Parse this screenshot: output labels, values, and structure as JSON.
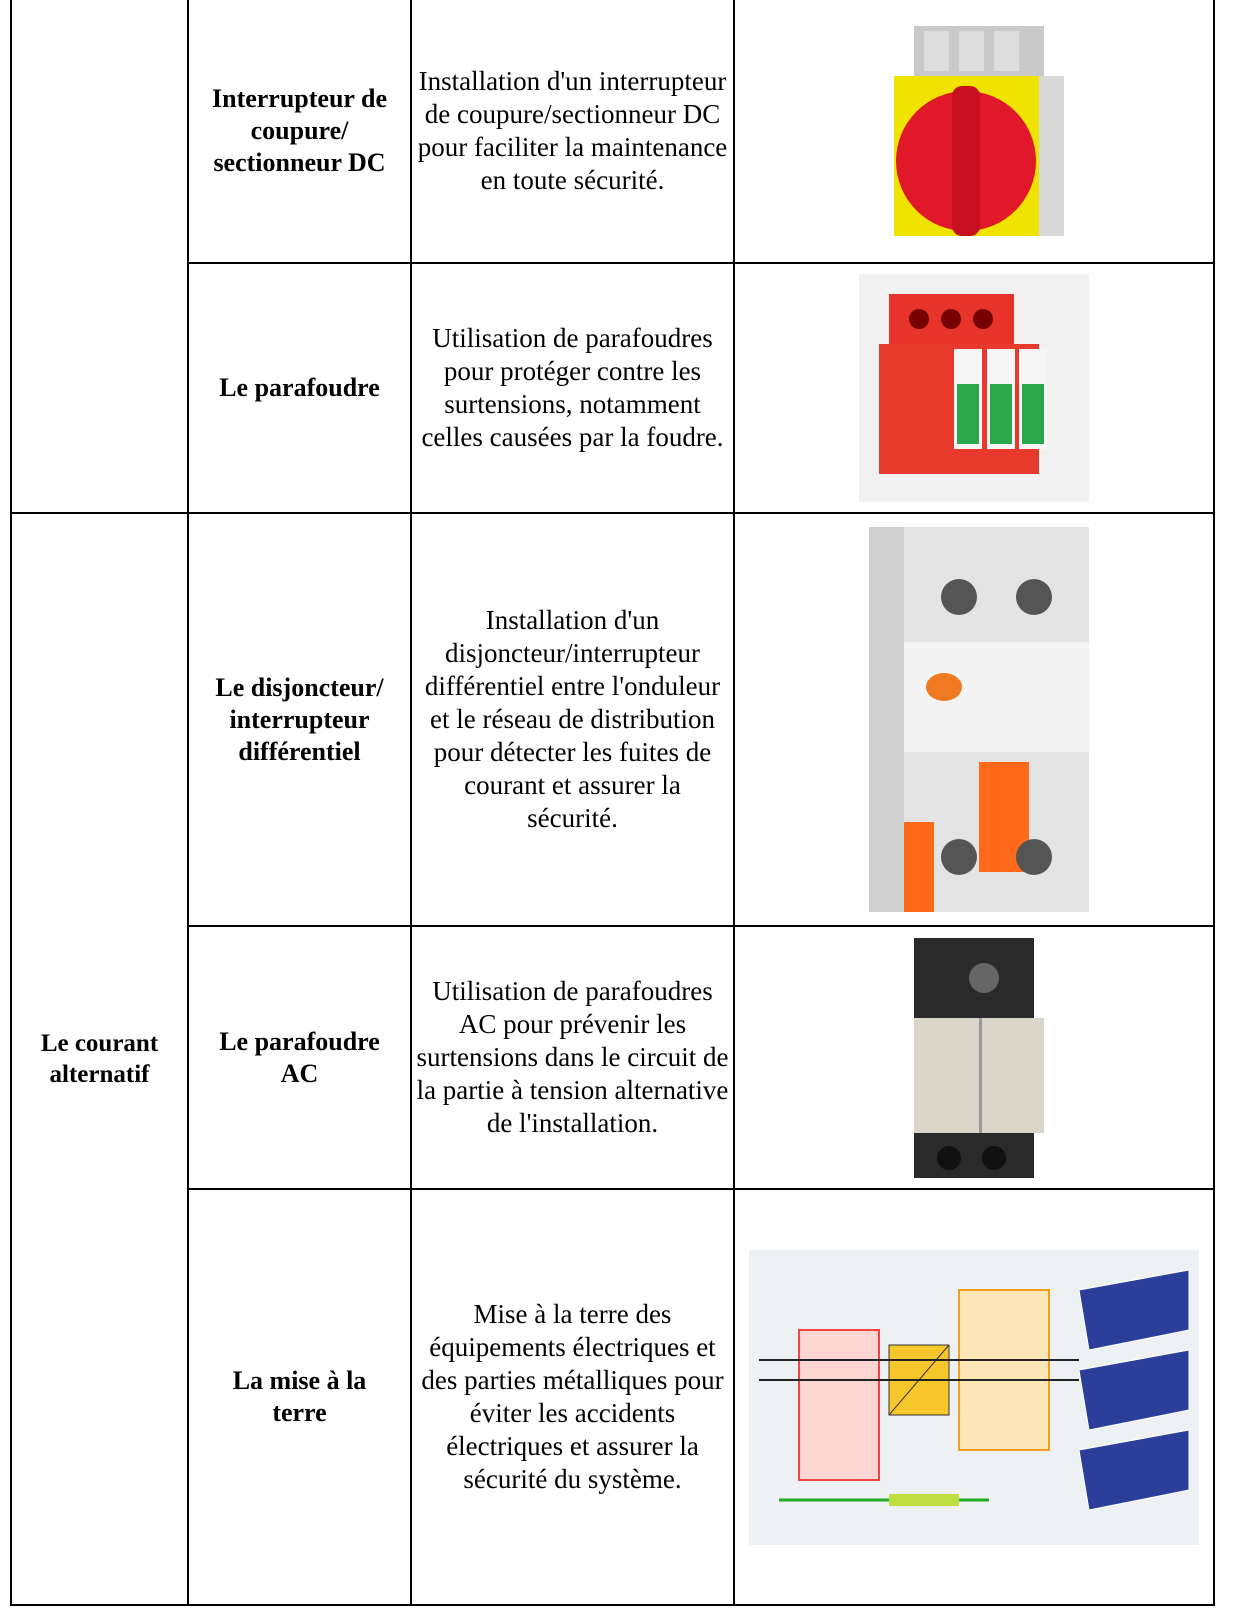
{
  "table": {
    "group": "Le courant alternatif",
    "rows": [
      {
        "label": "Interrupteur de coupure/ sectionneur DC",
        "description": "Installation d'un interrupteur de coupure/sectionneur DC pour faciliter la maintenance en toute sécurité."
      },
      {
        "label": "Le parafoudre",
        "description": "Utilisation de parafoudres pour protéger contre les surtensions, notamment celles causées par la foudre."
      },
      {
        "label": "Le disjoncteur/ interrupteur différentiel",
        "description": "Installation d'un disjoncteur/interrupteur différentiel entre l'onduleur et le réseau de distribution pour détecter les fuites de courant et assurer la sécurité."
      },
      {
        "label": "Le parafoudre AC",
        "description": "Utilisation de parafoudres AC pour prévenir les surtensions dans le circuit de la partie à tension alternative de l'installation."
      },
      {
        "label": "La mise à la terre",
        "description": "Mise à la terre des équipements électriques et des parties métalliques pour éviter les accidents électriques et assurer la sécurité du système."
      }
    ]
  }
}
